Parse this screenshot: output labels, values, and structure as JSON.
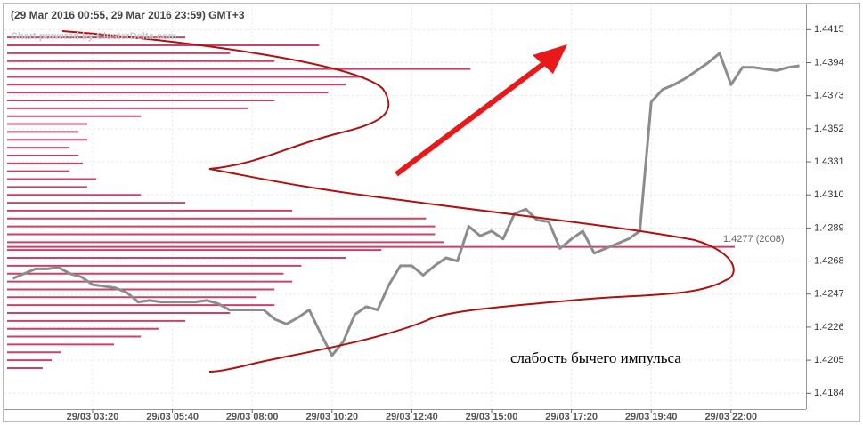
{
  "chart_data": {
    "type": "line",
    "title": "(29 Mar 2016 00:55, 29 Mar 2016 23:59) GMT+3",
    "subtitle": "Chart powered by ClusterDelta.com",
    "annotation": "слабость бычего импульса",
    "poc_label": "1.4277 (2008)",
    "categories": [
      null,
      null,
      null,
      null,
      null,
      null,
      null,
      "29/03 03:20",
      null,
      null,
      null,
      null,
      null,
      null,
      "29/03 05:40",
      null,
      null,
      null,
      null,
      null,
      null,
      "29/03 08:00",
      null,
      null,
      null,
      null,
      null,
      null,
      "29/03 10:20",
      null,
      null,
      null,
      null,
      null,
      null,
      "29/03 12:40",
      null,
      null,
      null,
      null,
      null,
      null,
      "29/03 15:00",
      null,
      null,
      null,
      null,
      null,
      null,
      "29/03 17:20",
      null,
      null,
      null,
      null,
      null,
      null,
      "29/03 19:40",
      null,
      null,
      null,
      null,
      null,
      null,
      "29/03 22:00",
      null,
      null,
      null,
      null,
      null,
      null
    ],
    "series": [
      {
        "color": "#8c8c8c",
        "values": [
          1.4257,
          1.426,
          1.4263,
          1.4263,
          1.4264,
          1.426,
          1.4258,
          1.4253,
          1.4252,
          1.4251,
          1.4248,
          1.4242,
          1.4243,
          1.4242,
          1.4242,
          1.4242,
          1.4242,
          1.4243,
          1.4241,
          1.4237,
          1.4237,
          1.4237,
          1.4237,
          1.4231,
          1.4228,
          1.4232,
          1.4237,
          1.4222,
          1.4208,
          1.4217,
          1.4234,
          1.4239,
          1.4237,
          1.4253,
          1.4265,
          1.4265,
          1.4259,
          1.4265,
          1.427,
          1.4268,
          1.429,
          1.4284,
          1.4287,
          1.4282,
          1.4298,
          1.4301,
          1.4294,
          1.4293,
          1.4276,
          1.4282,
          1.4287,
          1.4273,
          1.4276,
          1.4279,
          1.4282,
          1.4287,
          1.4369,
          1.4377,
          1.438,
          1.4384,
          1.4389,
          1.4394,
          1.44,
          1.438,
          1.4391,
          1.4391,
          1.439,
          1.4389,
          1.4391,
          1.4392
        ]
      }
    ],
    "profile": {
      "color": "#c8426a",
      "levels": [
        1.441,
        1.4405,
        1.44,
        1.4395,
        1.439,
        1.4385,
        1.438,
        1.4375,
        1.437,
        1.4365,
        1.436,
        1.4355,
        1.435,
        1.4345,
        1.434,
        1.4335,
        1.433,
        1.4325,
        1.432,
        1.4315,
        1.431,
        1.4305,
        1.43,
        1.4295,
        1.429,
        1.4285,
        1.428,
        1.4277,
        1.4275,
        1.427,
        1.4265,
        1.426,
        1.4255,
        1.425,
        1.4245,
        1.424,
        1.4235,
        1.423,
        1.4225,
        1.422,
        1.4215,
        1.421,
        1.4205,
        1.42
      ],
      "volumes": [
        492,
        861,
        615,
        738,
        1279,
        984,
        935,
        886,
        738,
        664,
        369,
        221,
        197,
        221,
        172,
        197,
        209,
        172,
        246,
        221,
        369,
        492,
        787,
        1156,
        1181,
        1181,
        1205,
        2008,
        1033,
        935,
        812,
        763,
        787,
        738,
        689,
        738,
        615,
        492,
        418,
        369,
        295,
        148,
        123,
        98
      ]
    },
    "ylim": [
      1.4174,
      1.4431
    ],
    "yticks": [
      1.4415,
      1.4394,
      1.4373,
      1.4352,
      1.4331,
      {
        "value": 1.431,
        "label": "1.4310"
      },
      1.4289,
      1.4268,
      1.4247,
      1.4226,
      1.4205,
      1.4184
    ],
    "grid": true
  }
}
